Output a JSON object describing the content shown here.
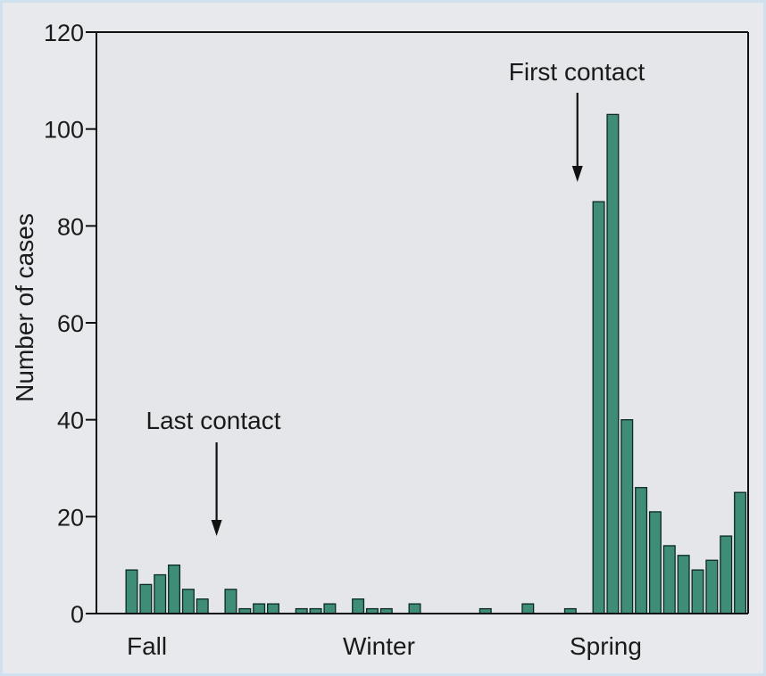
{
  "colors": {
    "bar_fill": "#3f8c78",
    "bar_stroke": "#0b2a22",
    "plot_background": "#e4e6e9",
    "axis": "#111111"
  },
  "chart_data": {
    "type": "bar",
    "ylabel": "Number of cases",
    "xlabel": "",
    "ylim": [
      0,
      120
    ],
    "y_ticks": [
      "0",
      "20",
      "40",
      "60",
      "80",
      "100",
      "120"
    ],
    "x_category_labels": [
      "Fall",
      "Winter",
      "Spring"
    ],
    "bar_width_periods": 0.8,
    "series": [
      {
        "values": [
          9,
          6,
          8,
          10,
          5,
          3,
          0,
          5,
          1,
          2,
          2,
          0,
          1,
          1,
          2,
          0,
          3,
          1,
          1,
          0,
          2,
          0,
          0,
          0,
          0,
          1,
          0,
          0,
          2,
          0,
          0,
          1,
          0,
          85,
          103,
          40,
          26,
          21,
          14,
          12,
          9,
          11,
          16,
          25
        ]
      }
    ],
    "annotations": [
      {
        "text": "Last contact",
        "period": 6
      },
      {
        "text": "First contact",
        "period": 31.5
      }
    ]
  }
}
